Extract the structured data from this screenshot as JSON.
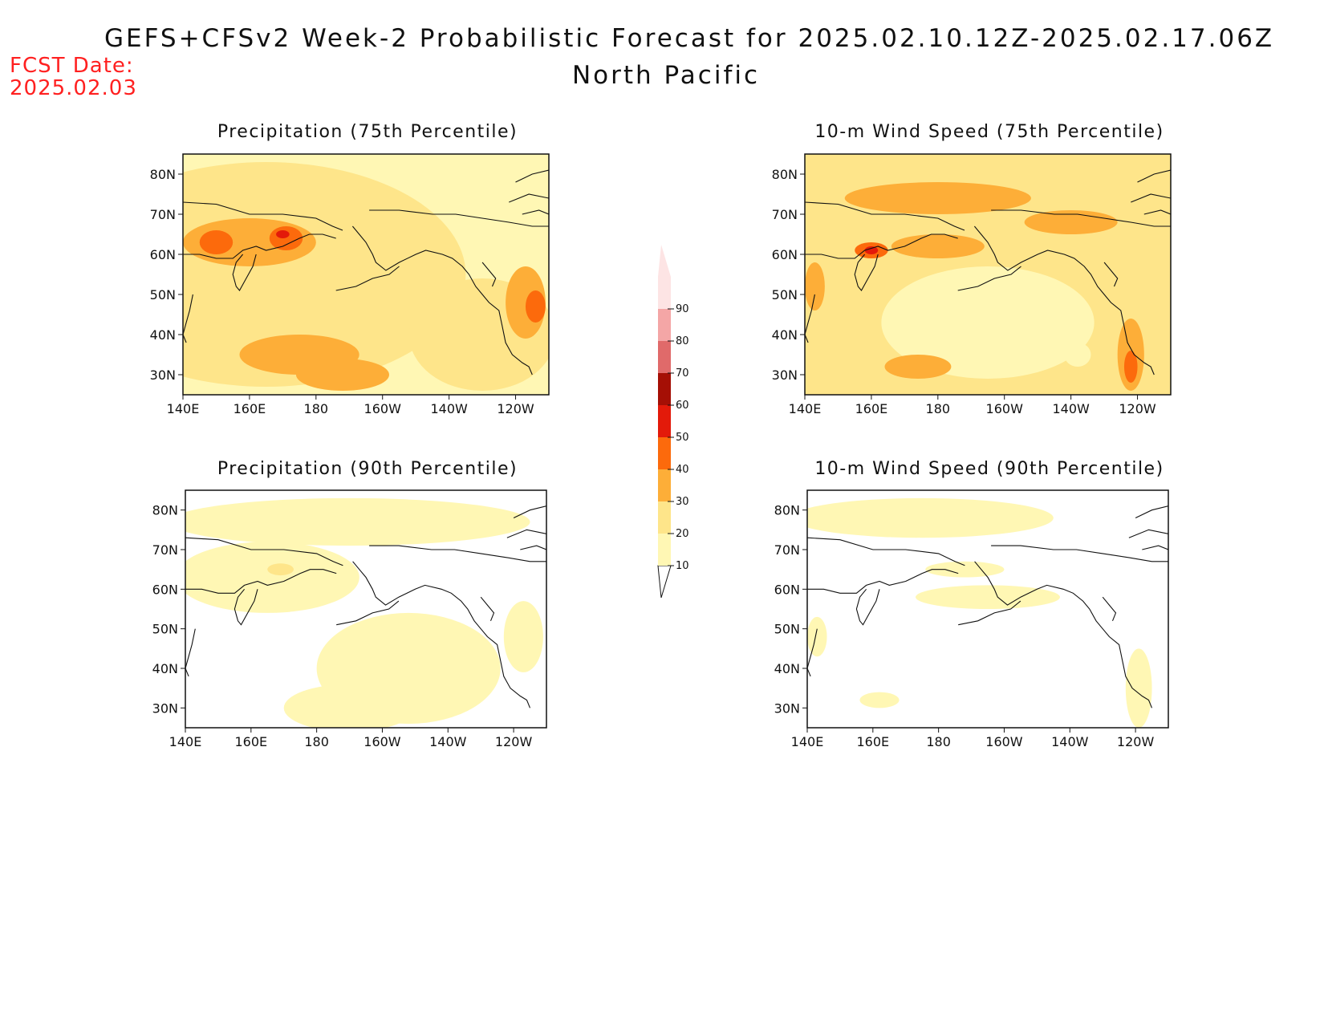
{
  "header": {
    "title": "GEFS+CFSv2 Week-2 Probabilistic Forecast for 2025.02.10.12Z-2025.02.17.06Z",
    "region": "North Pacific",
    "fcst_label": "FCST Date:",
    "fcst_date": "2025.02.03"
  },
  "axes": {
    "lon_labels": [
      "140E",
      "160E",
      "180",
      "160W",
      "140W",
      "120W"
    ],
    "lat_labels": [
      "80N",
      "70N",
      "60N",
      "50N",
      "40N",
      "30N"
    ],
    "lon_values": [
      140,
      160,
      180,
      200,
      220,
      240
    ],
    "lat_values": [
      80,
      70,
      60,
      50,
      40,
      30
    ],
    "lon_range": [
      140,
      250
    ],
    "lat_range": [
      25,
      85
    ]
  },
  "colorbar": {
    "levels": [
      10,
      20,
      30,
      40,
      50,
      60,
      70,
      80,
      90
    ],
    "labels": [
      "10",
      "20",
      "30",
      "40",
      "50",
      "60",
      "70",
      "80",
      "90"
    ],
    "colors": [
      "#fff7b4",
      "#fee58a",
      "#fdae38",
      "#fc6a0c",
      "#e31a0a",
      "#a50f05",
      "#e06a6a",
      "#f4a6a6",
      "#fde4e4"
    ]
  },
  "panels": [
    {
      "id": "precip-75",
      "title": "Precipitation (75th Percentile)",
      "background_level": 10,
      "features": [
        {
          "level": 20,
          "lon": 165,
          "lat": 55,
          "rx": 60,
          "ry": 28
        },
        {
          "level": 20,
          "lon": 230,
          "lat": 40,
          "rx": 22,
          "ry": 14
        },
        {
          "level": 30,
          "lon": 160,
          "lat": 63,
          "rx": 20,
          "ry": 6
        },
        {
          "level": 30,
          "lon": 175,
          "lat": 35,
          "rx": 18,
          "ry": 5
        },
        {
          "level": 30,
          "lon": 188,
          "lat": 30,
          "rx": 14,
          "ry": 4
        },
        {
          "level": 30,
          "lon": 243,
          "lat": 48,
          "rx": 6,
          "ry": 9
        },
        {
          "level": 40,
          "lon": 150,
          "lat": 63,
          "rx": 5,
          "ry": 3
        },
        {
          "level": 40,
          "lon": 171,
          "lat": 64,
          "rx": 5,
          "ry": 3
        },
        {
          "level": 40,
          "lon": 246,
          "lat": 47,
          "rx": 3,
          "ry": 4
        },
        {
          "level": 50,
          "lon": 170,
          "lat": 65,
          "rx": 2,
          "ry": 1
        }
      ]
    },
    {
      "id": "wind-75",
      "title": "10-m Wind Speed (75th Percentile)",
      "background_level": 20,
      "features": [
        {
          "level": 10,
          "lon": 195,
          "lat": 43,
          "rx": 32,
          "ry": 14
        },
        {
          "level": 10,
          "lon": 222,
          "lat": 35,
          "rx": 4,
          "ry": 3
        },
        {
          "level": 30,
          "lon": 180,
          "lat": 74,
          "rx": 28,
          "ry": 4
        },
        {
          "level": 30,
          "lon": 220,
          "lat": 68,
          "rx": 14,
          "ry": 3
        },
        {
          "level": 30,
          "lon": 180,
          "lat": 62,
          "rx": 14,
          "ry": 3
        },
        {
          "level": 30,
          "lon": 143,
          "lat": 52,
          "rx": 3,
          "ry": 6
        },
        {
          "level": 30,
          "lon": 174,
          "lat": 32,
          "rx": 10,
          "ry": 3
        },
        {
          "level": 30,
          "lon": 238,
          "lat": 35,
          "rx": 4,
          "ry": 9
        },
        {
          "level": 40,
          "lon": 160,
          "lat": 61,
          "rx": 5,
          "ry": 2
        },
        {
          "level": 40,
          "lon": 238,
          "lat": 32,
          "rx": 2,
          "ry": 4
        },
        {
          "level": 50,
          "lon": 160,
          "lat": 61,
          "rx": 2,
          "ry": 1
        }
      ]
    },
    {
      "id": "precip-90",
      "title": "Precipitation (90th Percentile)",
      "background_level": 0,
      "features": [
        {
          "level": 10,
          "lon": 190,
          "lat": 77,
          "rx": 55,
          "ry": 6
        },
        {
          "level": 10,
          "lon": 165,
          "lat": 63,
          "rx": 28,
          "ry": 9
        },
        {
          "level": 10,
          "lon": 208,
          "lat": 40,
          "rx": 28,
          "ry": 14
        },
        {
          "level": 10,
          "lon": 190,
          "lat": 30,
          "rx": 20,
          "ry": 6
        },
        {
          "level": 10,
          "lon": 243,
          "lat": 48,
          "rx": 6,
          "ry": 9
        },
        {
          "level": 20,
          "lon": 169,
          "lat": 65,
          "rx": 4,
          "ry": 1.5
        }
      ]
    },
    {
      "id": "wind-90",
      "title": "10-m Wind Speed (90th Percentile)",
      "background_level": 0,
      "features": [
        {
          "level": 10,
          "lon": 175,
          "lat": 78,
          "rx": 40,
          "ry": 5
        },
        {
          "level": 10,
          "lon": 188,
          "lat": 65,
          "rx": 12,
          "ry": 2
        },
        {
          "level": 10,
          "lon": 195,
          "lat": 58,
          "rx": 22,
          "ry": 3
        },
        {
          "level": 10,
          "lon": 143,
          "lat": 48,
          "rx": 3,
          "ry": 5
        },
        {
          "level": 10,
          "lon": 241,
          "lat": 35,
          "rx": 4,
          "ry": 10
        },
        {
          "level": 10,
          "lon": 162,
          "lat": 32,
          "rx": 6,
          "ry": 2
        }
      ]
    }
  ]
}
